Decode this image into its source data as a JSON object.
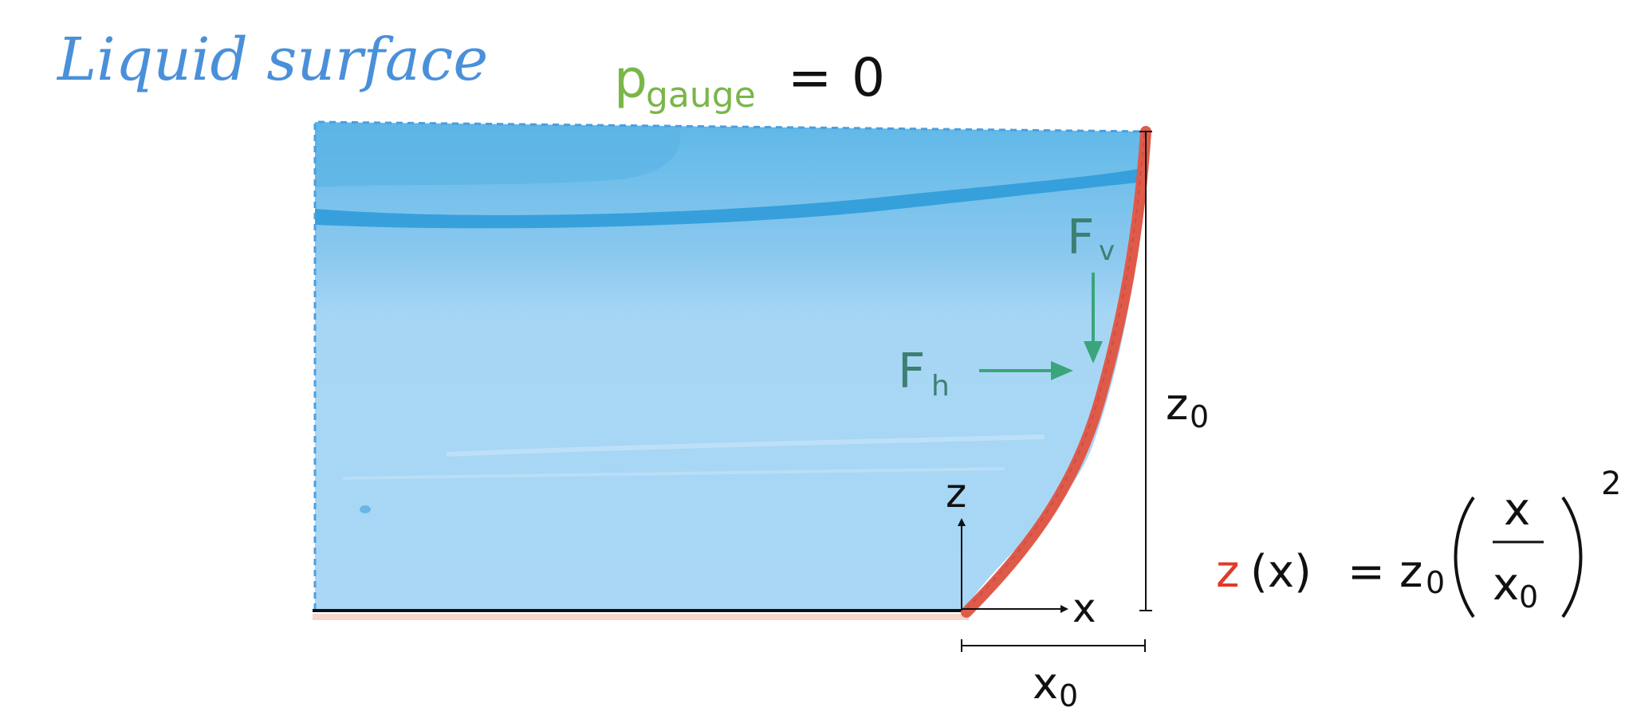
{
  "title": "Liquid surface",
  "pressure": {
    "symbol": "p",
    "subscript": "gauge",
    "equals": "=",
    "value": "0"
  },
  "forces": {
    "vertical": {
      "symbol": "F",
      "subscript": "v"
    },
    "horizontal": {
      "symbol": "F",
      "subscript": "h"
    }
  },
  "axes": {
    "z_label": "z",
    "x_label": "x"
  },
  "dimensions": {
    "height": {
      "symbol": "z",
      "subscript": "0"
    },
    "width": {
      "symbol": "x",
      "subscript": "0"
    }
  },
  "equation": {
    "lhs_var": "z",
    "lhs_arg": "(x)",
    "equals": "=",
    "coef": "z",
    "coef_sub": "0",
    "numerator": "x",
    "denominator": "x",
    "denominator_sub": "0",
    "exponent": "2"
  },
  "colors": {
    "title": "#4a90d9",
    "pressure": "#7ab648",
    "force": "#3aa57a",
    "force_text": "#3d7f72",
    "wall": "#e05a4a",
    "equation_var": "#e03a2a",
    "water_light": "#a8d6f4",
    "water_dark": "#3fa6df",
    "dashed_border": "#4a9fe0",
    "ink": "#111111"
  },
  "icons": {
    "vertical_force_arrow": "arrow-down-icon",
    "horizontal_force_arrow": "arrow-right-icon"
  }
}
